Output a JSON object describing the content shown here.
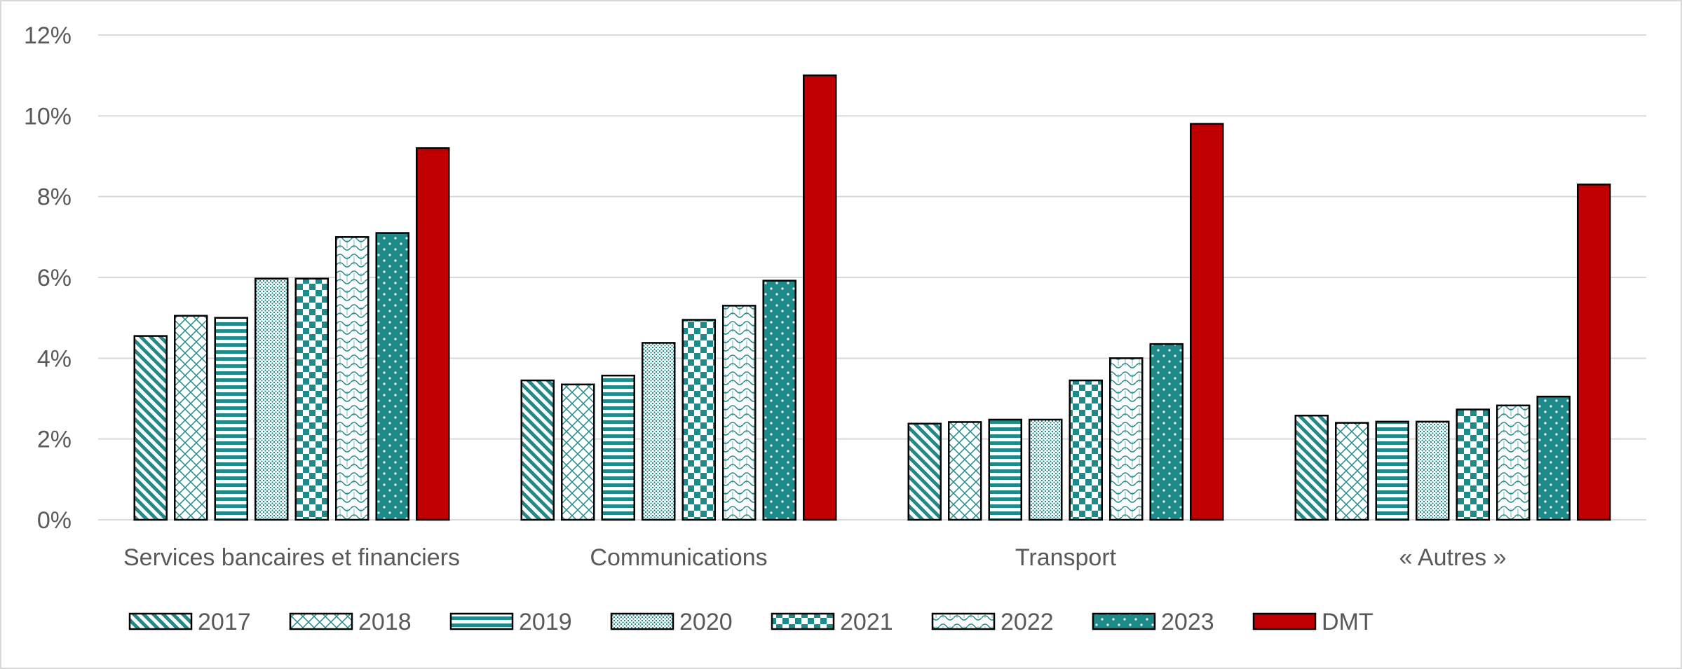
{
  "chart_data": {
    "type": "bar",
    "categories": [
      "Services bancaires et financiers",
      "Communications",
      "Transport",
      "« Autres »"
    ],
    "series": [
      {
        "name": "2017",
        "pattern": "diagonal-stripes",
        "values": [
          4.55,
          3.45,
          2.38,
          2.58
        ]
      },
      {
        "name": "2018",
        "pattern": "diamond-lattice",
        "values": [
          5.05,
          3.35,
          2.42,
          2.4
        ]
      },
      {
        "name": "2019",
        "pattern": "horizontal-stripes",
        "values": [
          5.0,
          3.57,
          2.48,
          2.43
        ]
      },
      {
        "name": "2020",
        "pattern": "fine-dots",
        "values": [
          5.97,
          4.38,
          2.48,
          2.43
        ]
      },
      {
        "name": "2021",
        "pattern": "checkerboard",
        "values": [
          5.97,
          4.95,
          3.45,
          2.73
        ]
      },
      {
        "name": "2022",
        "pattern": "wave",
        "values": [
          7.0,
          5.3,
          4.0,
          2.83
        ]
      },
      {
        "name": "2023",
        "pattern": "solid-teal-white-dots",
        "values": [
          7.1,
          5.92,
          4.35,
          3.05
        ]
      },
      {
        "name": "DMT",
        "pattern": "solid-red",
        "values": [
          9.2,
          11.0,
          9.8,
          8.3
        ]
      }
    ],
    "yticks": [
      "0%",
      "2%",
      "4%",
      "6%",
      "8%",
      "10%",
      "12%"
    ],
    "ylim": [
      0,
      12
    ],
    "grid": true,
    "legend_position": "bottom",
    "colors": {
      "teal": "#1f8a8a",
      "red": "#c00000",
      "grid": "#d9d9d9",
      "text": "#595959"
    },
    "title": "",
    "xlabel": "",
    "ylabel": ""
  }
}
